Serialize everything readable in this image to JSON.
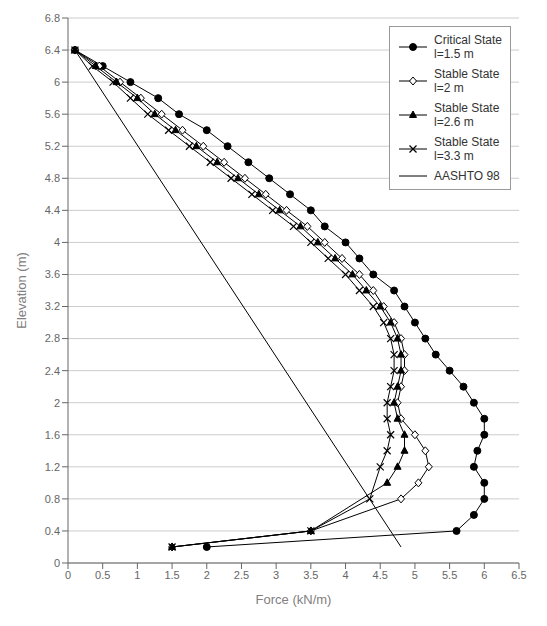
{
  "chart_data": {
    "type": "line",
    "title": "",
    "xlabel": "Force (kN/m)",
    "ylabel": "Elevation (m)",
    "xlim": [
      0,
      6.5
    ],
    "ylim": [
      0,
      6.8
    ],
    "xticks": [
      0,
      0.5,
      1,
      1.5,
      2,
      2.5,
      3,
      3.5,
      4,
      4.5,
      5,
      5.5,
      6,
      6.5
    ],
    "yticks": [
      0,
      0.4,
      0.8,
      1.2,
      1.6,
      2,
      2.4,
      2.8,
      3.2,
      3.6,
      4,
      4.4,
      4.8,
      5.2,
      5.6,
      6,
      6.4,
      6.8
    ],
    "grid": "y",
    "legend": "upper right",
    "series": [
      {
        "name": "Critical State\nl=1.5 m",
        "color": "#000000",
        "marker": "circle",
        "x": [
          0.1,
          0.5,
          0.9,
          1.3,
          1.6,
          2.0,
          2.3,
          2.6,
          2.9,
          3.2,
          3.5,
          3.7,
          4.0,
          4.2,
          4.4,
          4.7,
          4.85,
          5.0,
          5.15,
          5.3,
          5.5,
          5.7,
          5.85,
          6.0,
          6.0,
          5.9,
          5.85,
          6.0,
          6.0,
          5.85,
          5.6,
          2.0
        ],
        "values": [
          6.4,
          6.2,
          6.0,
          5.8,
          5.6,
          5.4,
          5.2,
          5.0,
          4.8,
          4.6,
          4.4,
          4.2,
          4.0,
          3.8,
          3.6,
          3.4,
          3.2,
          3.0,
          2.8,
          2.6,
          2.4,
          2.2,
          2.0,
          1.8,
          1.6,
          1.4,
          1.2,
          1.0,
          0.8,
          0.6,
          0.4,
          0.2
        ]
      },
      {
        "name": "Stable State\nl=2 m",
        "color": "#000000",
        "marker": "diamond",
        "x": [
          0.1,
          0.45,
          0.75,
          1.05,
          1.35,
          1.65,
          1.95,
          2.25,
          2.55,
          2.85,
          3.15,
          3.45,
          3.7,
          3.95,
          4.2,
          4.4,
          4.55,
          4.7,
          4.8,
          4.85,
          4.85,
          4.8,
          4.75,
          4.8,
          5.0,
          5.15,
          5.2,
          5.05,
          4.8,
          3.5,
          1.5
        ],
        "values": [
          6.4,
          6.2,
          6.0,
          5.8,
          5.6,
          5.4,
          5.2,
          5.0,
          4.8,
          4.6,
          4.4,
          4.2,
          4.0,
          3.8,
          3.6,
          3.4,
          3.2,
          3.0,
          2.8,
          2.6,
          2.4,
          2.2,
          2.0,
          1.8,
          1.6,
          1.4,
          1.2,
          1.0,
          0.8,
          0.4,
          0.2
        ]
      },
      {
        "name": "Stable State\nl=2.6 m",
        "color": "#000000",
        "marker": "triangle",
        "x": [
          0.1,
          0.4,
          0.7,
          1.0,
          1.25,
          1.55,
          1.85,
          2.15,
          2.45,
          2.75,
          3.05,
          3.35,
          3.6,
          3.85,
          4.1,
          4.3,
          4.5,
          4.65,
          4.75,
          4.8,
          4.8,
          4.75,
          4.7,
          4.75,
          4.85,
          4.85,
          4.75,
          4.6,
          3.5,
          1.5
        ],
        "values": [
          6.4,
          6.2,
          6.0,
          5.8,
          5.6,
          5.4,
          5.2,
          5.0,
          4.8,
          4.6,
          4.4,
          4.2,
          4.0,
          3.8,
          3.6,
          3.4,
          3.2,
          3.0,
          2.8,
          2.6,
          2.4,
          2.2,
          2.0,
          1.8,
          1.6,
          1.4,
          1.2,
          1.0,
          0.4,
          0.2
        ]
      },
      {
        "name": "Stable State\nl=3.3 m",
        "color": "#000000",
        "marker": "x",
        "x": [
          0.1,
          0.35,
          0.65,
          0.9,
          1.15,
          1.45,
          1.75,
          2.05,
          2.35,
          2.65,
          2.95,
          3.25,
          3.5,
          3.75,
          4.0,
          4.2,
          4.4,
          4.55,
          4.65,
          4.7,
          4.7,
          4.65,
          4.6,
          4.6,
          4.65,
          4.6,
          4.5,
          4.35,
          3.5,
          1.5
        ],
        "values": [
          6.4,
          6.2,
          6.0,
          5.8,
          5.6,
          5.4,
          5.2,
          5.0,
          4.8,
          4.6,
          4.4,
          4.2,
          4.0,
          3.8,
          3.6,
          3.4,
          3.2,
          3.0,
          2.8,
          2.6,
          2.4,
          2.2,
          2.0,
          1.8,
          1.6,
          1.4,
          1.2,
          0.8,
          0.4,
          0.2
        ]
      },
      {
        "name": "AASHTO 98",
        "color": "#000000",
        "marker": "none",
        "x": [
          0.1,
          4.8
        ],
        "values": [
          6.4,
          0.2
        ]
      }
    ]
  }
}
